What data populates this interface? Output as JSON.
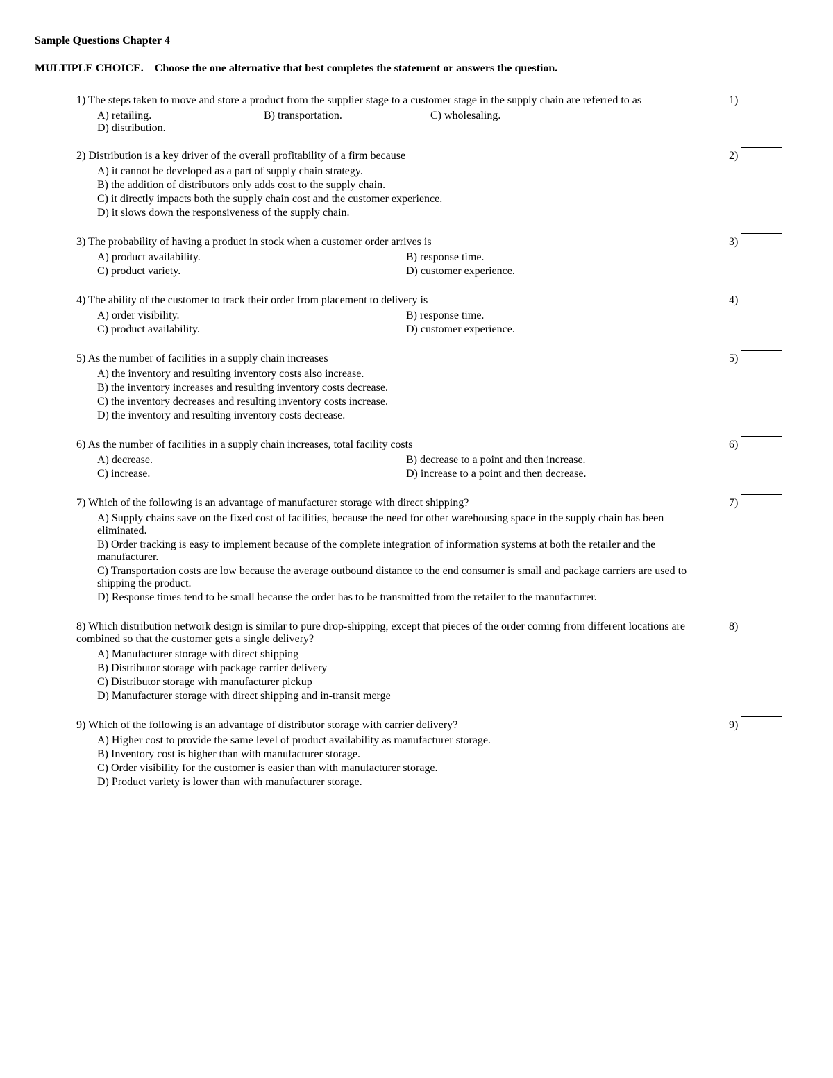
{
  "title": "Sample Questions Chapter 4",
  "instructions_label": "MULTIPLE CHOICE.",
  "instructions_text": "Choose the one alternative that best completes the statement or answers the question.",
  "questions": [
    {
      "num": "1)",
      "stem": "The steps taken to move and store a product from the supplier stage to a customer stage in the supply chain are referred to as",
      "layout": "horizontal4",
      "choices": [
        {
          "label": "A) retailing."
        },
        {
          "label": "B) transportation."
        },
        {
          "label": "C) wholesaling."
        },
        {
          "label": "D) distribution."
        }
      ]
    },
    {
      "num": "2)",
      "stem": "Distribution is a key driver of the overall profitability of a firm because",
      "layout": "vertical",
      "choices": [
        {
          "label": "A) it cannot be developed as a part of supply chain strategy."
        },
        {
          "label": "B) the addition of distributors only adds cost to the supply chain."
        },
        {
          "label": "C) it directly impacts both the supply chain cost and the customer experience."
        },
        {
          "label": "D) it slows down the responsiveness of the supply chain."
        }
      ]
    },
    {
      "num": "3)",
      "stem": "The probability of having a product in stock when a customer order arrives is",
      "layout": "twocol",
      "choices": [
        {
          "label": "A) product availability."
        },
        {
          "label": "B) response time."
        },
        {
          "label": "C) product variety."
        },
        {
          "label": "D) customer experience."
        }
      ]
    },
    {
      "num": "4)",
      "stem": "The ability of the customer to track their order from placement to delivery is",
      "layout": "twocol",
      "choices": [
        {
          "label": "A) order visibility."
        },
        {
          "label": "B) response time."
        },
        {
          "label": "C) product availability."
        },
        {
          "label": "D) customer experience."
        }
      ]
    },
    {
      "num": "5)",
      "stem": "As the number of facilities in a supply chain increases",
      "layout": "vertical",
      "choices": [
        {
          "label": "A) the inventory and resulting inventory costs also increase."
        },
        {
          "label": "B) the inventory increases and resulting inventory costs decrease."
        },
        {
          "label": "C) the inventory decreases and resulting inventory costs increase."
        },
        {
          "label": "D) the inventory and resulting inventory costs decrease."
        }
      ]
    },
    {
      "num": "6)",
      "stem": "As the number of facilities in a supply chain increases, total facility costs",
      "layout": "twocol",
      "choices": [
        {
          "label": "A) decrease."
        },
        {
          "label": "B) decrease to a point and then increase."
        },
        {
          "label": "C) increase."
        },
        {
          "label": "D) increase to a point and then decrease."
        }
      ]
    },
    {
      "num": "7)",
      "stem": "Which of the following is an advantage of manufacturer storage with direct shipping?",
      "layout": "vertical",
      "choices": [
        {
          "label": "A) Supply chains save on the fixed cost of facilities, because the need for other warehousing space in the supply chain has been eliminated."
        },
        {
          "label": "B) Order tracking is easy to implement because of the complete integration of information systems at both the retailer and the manufacturer."
        },
        {
          "label": "C) Transportation costs are low because the average outbound distance to the end consumer is small and package carriers are used to shipping the product."
        },
        {
          "label": "D) Response times tend to be small because the order has to be transmitted from the retailer to the manufacturer."
        }
      ]
    },
    {
      "num": "8)",
      "stem": "Which distribution network design is similar to pure drop-shipping, except that pieces of the order coming from different locations are combined so that the customer gets a single delivery?",
      "layout": "vertical",
      "choices": [
        {
          "label": "A) Manufacturer storage with direct shipping"
        },
        {
          "label": "B) Distributor storage with package carrier delivery"
        },
        {
          "label": "C) Distributor storage with manufacturer pickup"
        },
        {
          "label": "D) Manufacturer storage with direct shipping and in-transit merge"
        }
      ]
    },
    {
      "num": "9)",
      "stem": "Which of the following is an advantage of distributor storage with carrier delivery?",
      "layout": "vertical",
      "choices": [
        {
          "label": "A) Higher cost to provide the same level of product availability as manufacturer storage."
        },
        {
          "label": "B) Inventory cost is higher than with manufacturer storage."
        },
        {
          "label": "C) Order visibility for the customer is easier than with manufacturer storage."
        },
        {
          "label": "D) Product variety is lower than with manufacturer storage."
        }
      ]
    }
  ]
}
